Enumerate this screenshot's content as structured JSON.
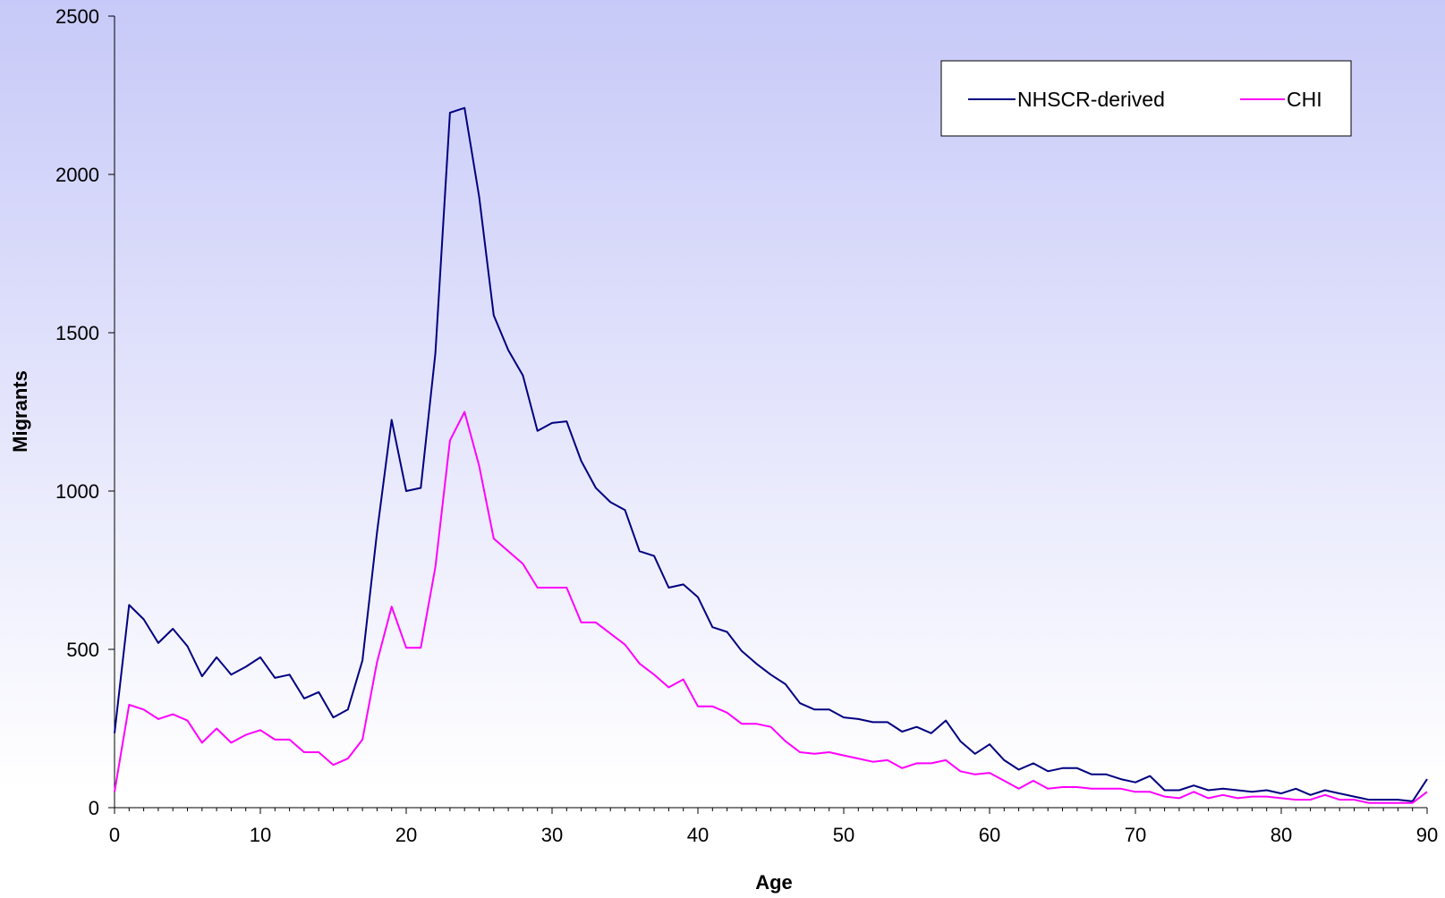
{
  "chart_data": {
    "type": "line",
    "title": "",
    "xlabel": "Age",
    "ylabel": "Migrants",
    "xlim": [
      0,
      90
    ],
    "ylim": [
      0,
      2500
    ],
    "xticks": [
      "0",
      "10",
      "20",
      "30",
      "40",
      "50",
      "60",
      "70",
      "80",
      "90"
    ],
    "yticks": [
      "0",
      "500",
      "1000",
      "1500",
      "2000",
      "2500"
    ],
    "grid": false,
    "legend_position": "top-right",
    "background": "gradient periwinkle-blue to white",
    "x": [
      0,
      1,
      2,
      3,
      4,
      5,
      6,
      7,
      8,
      9,
      10,
      11,
      12,
      13,
      14,
      15,
      16,
      17,
      18,
      19,
      20,
      21,
      22,
      23,
      24,
      25,
      26,
      27,
      28,
      29,
      30,
      31,
      32,
      33,
      34,
      35,
      36,
      37,
      38,
      39,
      40,
      41,
      42,
      43,
      44,
      45,
      46,
      47,
      48,
      49,
      50,
      51,
      52,
      53,
      54,
      55,
      56,
      57,
      58,
      59,
      60,
      61,
      62,
      63,
      64,
      65,
      66,
      67,
      68,
      69,
      70,
      71,
      72,
      73,
      74,
      75,
      76,
      77,
      78,
      79,
      80,
      81,
      82,
      83,
      84,
      85,
      86,
      87,
      88,
      89,
      90
    ],
    "series": [
      {
        "name": "NHSCR-derived",
        "color": "#000080",
        "values": [
          235,
          640,
          595,
          520,
          565,
          510,
          415,
          475,
          420,
          445,
          475,
          410,
          420,
          345,
          365,
          285,
          310,
          465,
          870,
          1225,
          1000,
          1010,
          1435,
          2195,
          2210,
          1930,
          1555,
          1445,
          1365,
          1190,
          1215,
          1220,
          1095,
          1010,
          965,
          940,
          810,
          795,
          695,
          705,
          665,
          570,
          555,
          495,
          455,
          420,
          390,
          330,
          310,
          310,
          285,
          280,
          270,
          270,
          240,
          255,
          235,
          275,
          210,
          170,
          200,
          150,
          120,
          140,
          115,
          125,
          125,
          105,
          105,
          90,
          80,
          100,
          55,
          55,
          70,
          55,
          60,
          55,
          50,
          55,
          45,
          60,
          40,
          55,
          45,
          35,
          25,
          25,
          25,
          20,
          90
        ]
      },
      {
        "name": "CHI",
        "color": "#ff00ff",
        "values": [
          50,
          325,
          310,
          280,
          295,
          275,
          205,
          250,
          205,
          230,
          245,
          215,
          215,
          175,
          175,
          135,
          155,
          215,
          460,
          635,
          505,
          505,
          760,
          1160,
          1250,
          1080,
          850,
          810,
          770,
          695,
          695,
          695,
          585,
          585,
          550,
          515,
          455,
          420,
          380,
          405,
          320,
          320,
          300,
          265,
          265,
          255,
          210,
          175,
          170,
          175,
          165,
          155,
          145,
          150,
          125,
          140,
          140,
          150,
          115,
          105,
          110,
          85,
          60,
          85,
          60,
          65,
          65,
          60,
          60,
          60,
          50,
          50,
          35,
          30,
          50,
          30,
          40,
          30,
          35,
          35,
          30,
          25,
          25,
          40,
          25,
          25,
          15,
          15,
          15,
          15,
          50
        ]
      }
    ]
  }
}
